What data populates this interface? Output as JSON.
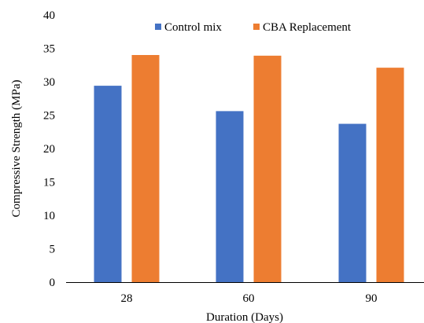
{
  "chart_data": {
    "type": "bar",
    "xlabel": "Duration (Days)",
    "ylabel": "Compressive Strength (MPa)",
    "categories": [
      "28",
      "60",
      "90"
    ],
    "ylim": [
      0,
      40
    ],
    "yticks": [
      0,
      5,
      10,
      15,
      20,
      25,
      30,
      35,
      40
    ],
    "grid": false,
    "legend_position": "top-right",
    "series": [
      {
        "name": "Control mix",
        "color": "#4472C4",
        "values": [
          29.4,
          25.6,
          23.7
        ]
      },
      {
        "name": "CBA Replacement",
        "color": "#ED7D31",
        "values": [
          34.0,
          33.9,
          32.1
        ]
      }
    ]
  }
}
